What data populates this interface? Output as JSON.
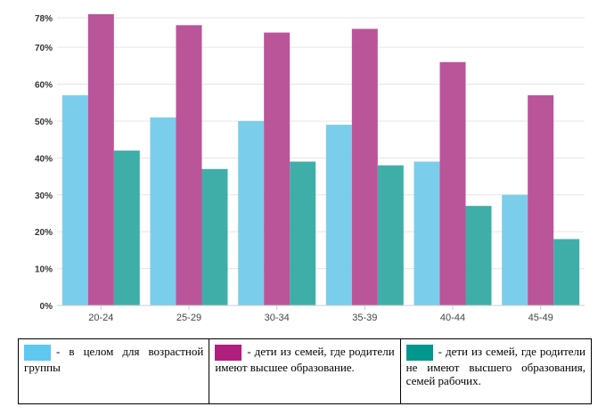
{
  "chart_data": {
    "type": "bar",
    "categories": [
      "20-24",
      "25-29",
      "30-34",
      "35-39",
      "40-44",
      "45-49"
    ],
    "series": [
      {
        "values": [
          57,
          51,
          50,
          49,
          39,
          30
        ],
        "color": "#6cc9ea"
      },
      {
        "values": [
          79,
          76,
          74,
          75,
          66,
          57
        ],
        "color": "#b3428f"
      },
      {
        "values": [
          42,
          37,
          39,
          38,
          27,
          18
        ],
        "color": "#2aa59e"
      }
    ],
    "yticks": [
      "0%",
      "10%",
      "20%",
      "30%",
      "40%",
      "50%",
      "60%",
      "70%",
      "78%"
    ],
    "ylim": [
      0,
      78
    ],
    "grid": true
  },
  "legend": [
    {
      "text": "- в целом для возрастной группы",
      "color": "#5ec8ee"
    },
    {
      "text": "- дети из семей, где родители имеют высшее образование.",
      "color": "#b01e7e"
    },
    {
      "text": "- дети из семей, где родители не имеют высшего образования, семей рабочих.",
      "color": "#00978e"
    }
  ]
}
